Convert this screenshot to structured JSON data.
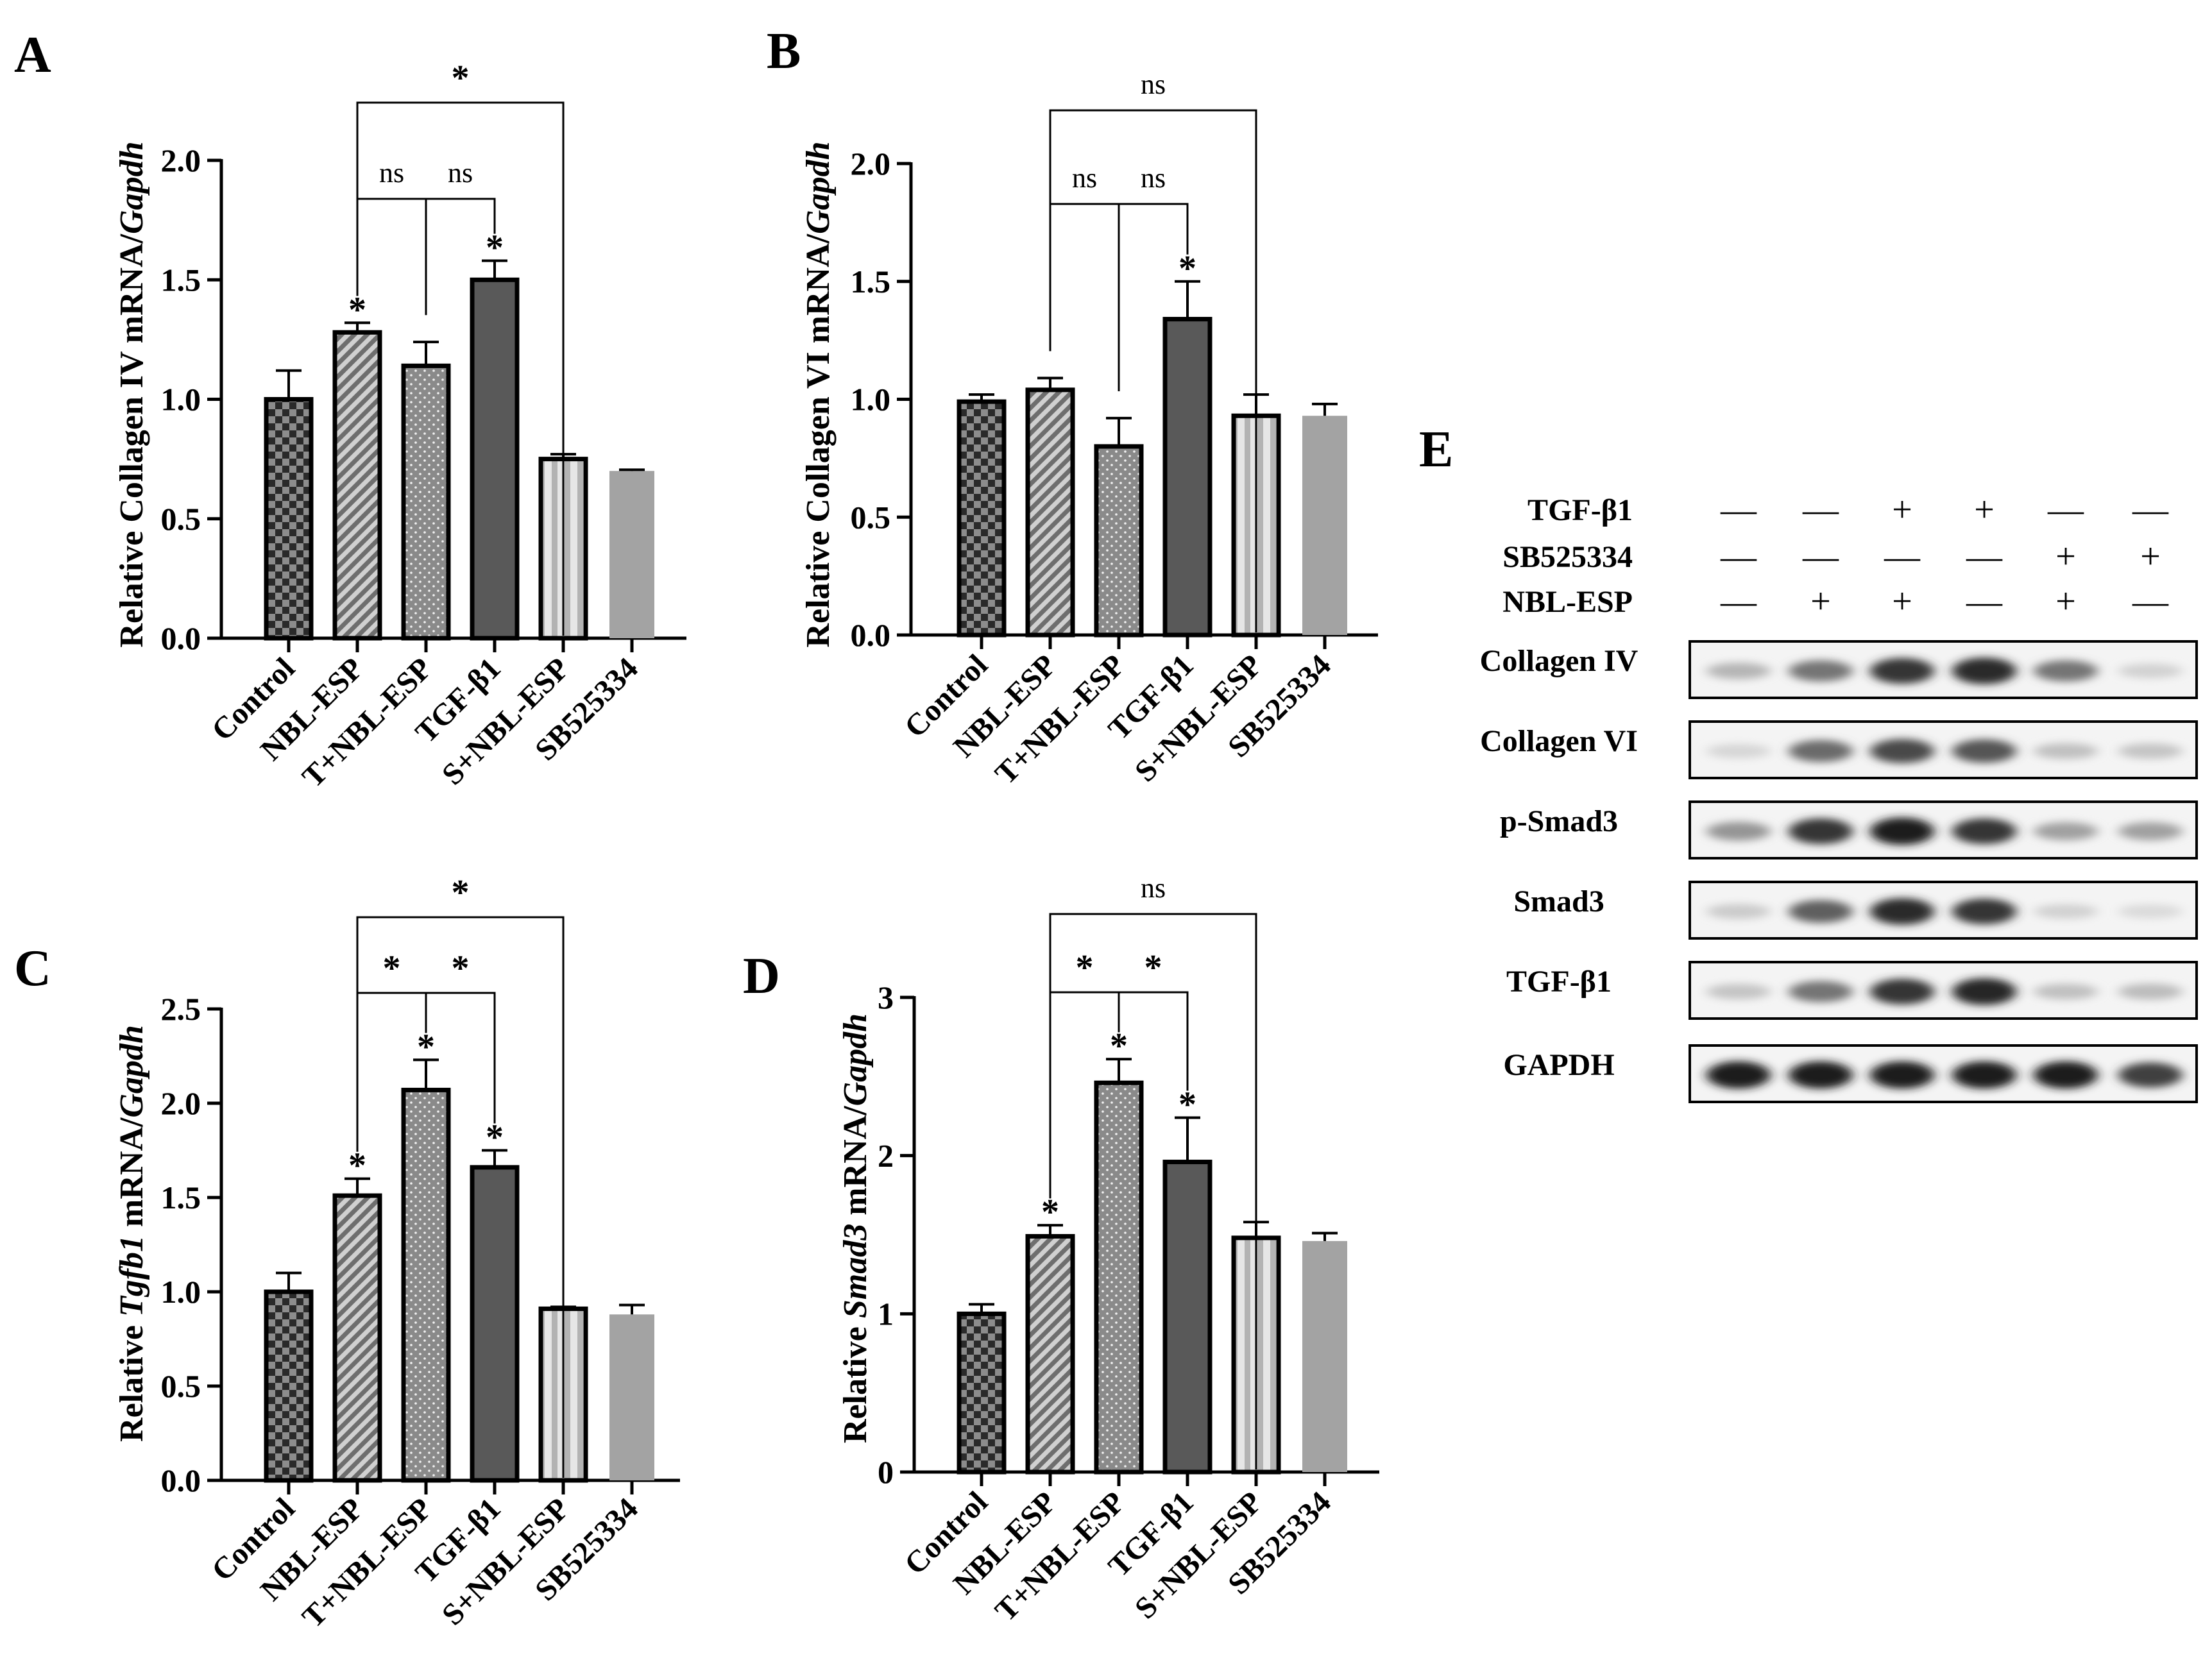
{
  "chart_data": [
    {
      "panel": "A",
      "type": "bar",
      "ylabel_parts": [
        "Relative Collagen IV mRNA/",
        "Gapdh"
      ],
      "ylabel_italic": [
        false,
        true
      ],
      "categories": [
        "Control",
        "NBL-ESP",
        "T+NBL-ESP",
        "TGF-β1",
        "S+NBL-ESP",
        "SB525334"
      ],
      "values": [
        1.0,
        1.28,
        1.14,
        1.5,
        0.75,
        0.7
      ],
      "errors": [
        0.12,
        0.04,
        0.1,
        0.08,
        0.02,
        0.005
      ],
      "bar_stars": [
        "",
        "*",
        "",
        "*",
        "",
        ""
      ],
      "ylim": [
        0,
        2.0
      ],
      "yticks": [
        "0.0",
        "0.5",
        "1.0",
        "1.5",
        "2.0"
      ],
      "brackets": [
        {
          "from": 1,
          "to": 2,
          "label": "ns"
        },
        {
          "from": 2,
          "to": 3,
          "label": "ns"
        },
        {
          "from": 1,
          "to": 4,
          "label": "*"
        }
      ]
    },
    {
      "panel": "B",
      "type": "bar",
      "ylabel_parts": [
        "Relative Collagen VI mRNA/",
        "Gapdh"
      ],
      "ylabel_italic": [
        false,
        true
      ],
      "categories": [
        "Control",
        "NBL-ESP",
        "T+NBL-ESP",
        "TGF-β1",
        "S+NBL-ESP",
        "SB525334"
      ],
      "values": [
        0.99,
        1.04,
        0.8,
        1.34,
        0.93,
        0.93
      ],
      "errors": [
        0.03,
        0.05,
        0.12,
        0.16,
        0.09,
        0.05
      ],
      "bar_stars": [
        "",
        "",
        "",
        "*",
        "",
        ""
      ],
      "ylim": [
        0,
        2.0
      ],
      "yticks": [
        "0.0",
        "0.5",
        "1.0",
        "1.5",
        "2.0"
      ],
      "brackets": [
        {
          "from": 1,
          "to": 2,
          "label": "ns"
        },
        {
          "from": 2,
          "to": 3,
          "label": "ns"
        },
        {
          "from": 1,
          "to": 4,
          "label": "ns"
        }
      ]
    },
    {
      "panel": "C",
      "type": "bar",
      "ylabel_parts": [
        "Relative ",
        "Tgfb1",
        " mRNA/",
        "Gapdh"
      ],
      "ylabel_italic": [
        false,
        true,
        false,
        true
      ],
      "categories": [
        "Control",
        "NBL-ESP",
        "T+NBL-ESP",
        "TGF-β1",
        "S+NBL-ESP",
        "SB525334"
      ],
      "values": [
        1.0,
        1.51,
        2.07,
        1.66,
        0.91,
        0.88
      ],
      "errors": [
        0.1,
        0.09,
        0.16,
        0.09,
        0.01,
        0.05
      ],
      "bar_stars": [
        "",
        "*",
        "*",
        "*",
        "",
        ""
      ],
      "ylim": [
        0,
        2.5
      ],
      "yticks": [
        "0.0",
        "0.5",
        "1.0",
        "1.5",
        "2.0",
        "2.5"
      ],
      "brackets": [
        {
          "from": 1,
          "to": 2,
          "label": "*"
        },
        {
          "from": 2,
          "to": 3,
          "label": "*"
        },
        {
          "from": 1,
          "to": 4,
          "label": "*"
        }
      ]
    },
    {
      "panel": "D",
      "type": "bar",
      "ylabel_parts": [
        "Relative ",
        "Smad3",
        " mRNA/",
        "Gapdh"
      ],
      "ylabel_italic": [
        false,
        true,
        false,
        true
      ],
      "categories": [
        "Control",
        "NBL-ESP",
        "T+NBL-ESP",
        "TGF-β1",
        "S+NBL-ESP",
        "SB525334"
      ],
      "values": [
        1.0,
        1.49,
        2.46,
        1.96,
        1.48,
        1.46
      ],
      "errors": [
        0.06,
        0.07,
        0.15,
        0.28,
        0.1,
        0.05
      ],
      "bar_stars": [
        "",
        "*",
        "*",
        "*",
        "",
        ""
      ],
      "ylim": [
        0,
        3
      ],
      "yticks": [
        "0",
        "1",
        "2",
        "3"
      ],
      "brackets": [
        {
          "from": 1,
          "to": 2,
          "label": "*"
        },
        {
          "from": 2,
          "to": 3,
          "label": "*"
        },
        {
          "from": 1,
          "to": 4,
          "label": "ns"
        }
      ]
    }
  ],
  "blot": {
    "panel": "E",
    "conditions": [
      {
        "label": "TGF-β1",
        "signs": [
          "—",
          "—",
          "+",
          "+",
          "—",
          "—"
        ]
      },
      {
        "label": "SB525334",
        "signs": [
          "—",
          "—",
          "—",
          "—",
          "+",
          "+"
        ]
      },
      {
        "label": "NBL-ESP",
        "signs": [
          "—",
          "+",
          "+",
          "—",
          "+",
          "—"
        ]
      }
    ],
    "rows": [
      {
        "label": "Collagen IV",
        "intensity": [
          0.25,
          0.55,
          0.85,
          0.9,
          0.55,
          0.12
        ]
      },
      {
        "label": "Collagen VI",
        "intensity": [
          0.1,
          0.6,
          0.75,
          0.7,
          0.2,
          0.18
        ]
      },
      {
        "label": "p-Smad3",
        "intensity": [
          0.4,
          0.85,
          0.95,
          0.85,
          0.35,
          0.35
        ]
      },
      {
        "label": "Smad3",
        "intensity": [
          0.15,
          0.65,
          0.9,
          0.85,
          0.12,
          0.08
        ]
      },
      {
        "label": "TGF-β1",
        "intensity": [
          0.18,
          0.55,
          0.85,
          0.92,
          0.2,
          0.22
        ]
      },
      {
        "label": "GAPDH",
        "intensity": [
          0.95,
          0.95,
          0.95,
          0.95,
          0.95,
          0.8
        ]
      }
    ]
  },
  "colors": {
    "checker_dark": "#2a2a2a",
    "checker_light": "#8c8c8c",
    "hatch": "#7a7a7a",
    "dots_fill": "#8a8a8a",
    "solid_dark": "#595959",
    "stripe_light": "#c8c8c8",
    "solid_light": "#a3a3a3"
  }
}
